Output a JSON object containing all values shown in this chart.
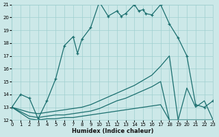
{
  "xlabel": "Humidex (Indice chaleur)",
  "xlim": [
    0,
    23
  ],
  "ylim": [
    12,
    21
  ],
  "yticks": [
    12,
    13,
    14,
    15,
    16,
    17,
    18,
    19,
    20,
    21
  ],
  "xticks": [
    0,
    1,
    2,
    3,
    4,
    5,
    6,
    7,
    8,
    9,
    10,
    11,
    12,
    13,
    14,
    15,
    16,
    17,
    18,
    19,
    20,
    21,
    22,
    23
  ],
  "bg_color": "#cce8e8",
  "grid_color": "#9fcfcf",
  "line_color": "#1a6e6e",
  "line1_x": [
    0,
    1,
    2,
    3,
    4,
    5,
    6,
    7,
    7.5,
    8,
    9,
    10,
    11,
    12,
    12.5,
    13,
    14,
    14.5,
    15,
    15.3,
    16,
    17,
    18,
    19,
    20,
    21,
    22,
    23
  ],
  "line1_y": [
    13,
    14,
    13.7,
    12.1,
    13.5,
    15.2,
    17.8,
    18.5,
    17.2,
    18.3,
    19.2,
    21.2,
    20.1,
    20.5,
    20.1,
    20.3,
    21.0,
    20.5,
    20.6,
    20.3,
    20.2,
    21.0,
    19.5,
    18.4,
    17.0,
    13.2,
    13.0,
    13.5
  ],
  "line2_x": [
    0,
    2,
    3,
    4,
    5,
    6,
    7,
    8,
    9,
    10,
    11,
    12,
    13,
    14,
    15,
    16,
    17,
    18,
    19,
    20,
    21,
    22,
    23
  ],
  "line2_y": [
    13,
    12.6,
    12.5,
    12.6,
    12.7,
    12.8,
    12.9,
    13.0,
    13.2,
    13.5,
    13.8,
    14.1,
    14.4,
    14.7,
    15.1,
    15.5,
    16.2,
    17.0,
    12.0,
    12.0,
    12.0,
    12.0,
    12.0
  ],
  "line3_x": [
    0,
    2,
    3,
    4,
    5,
    6,
    7,
    8,
    9,
    10,
    11,
    12,
    13,
    14,
    15,
    16,
    17,
    18,
    19,
    20,
    21,
    22,
    23
  ],
  "line3_y": [
    13,
    12.3,
    12.2,
    12.3,
    12.4,
    12.4,
    12.5,
    12.6,
    12.7,
    12.9,
    13.2,
    13.5,
    13.7,
    14.0,
    14.3,
    14.6,
    15.0,
    12.0,
    12.0,
    14.5,
    13.0,
    13.5,
    12.0
  ],
  "line4_x": [
    0,
    2,
    3,
    4,
    5,
    6,
    7,
    8,
    9,
    10,
    11,
    12,
    13,
    14,
    15,
    16,
    17,
    18,
    19,
    20,
    21,
    22,
    23
  ],
  "line4_y": [
    13,
    12.1,
    12.0,
    12.1,
    12.1,
    12.2,
    12.2,
    12.3,
    12.4,
    12.5,
    12.6,
    12.7,
    12.8,
    12.9,
    13.0,
    13.1,
    13.2,
    12.0,
    12.0,
    12.0,
    12.0,
    12.0,
    12.0
  ]
}
